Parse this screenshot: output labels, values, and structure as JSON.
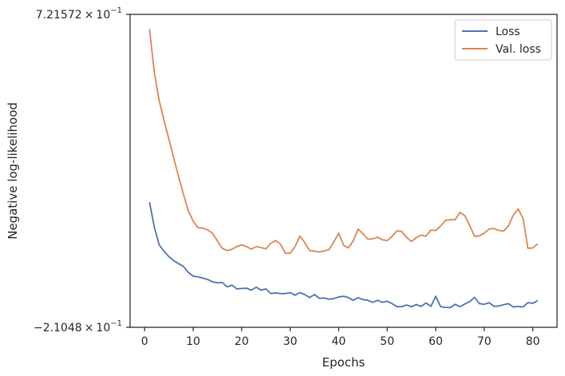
{
  "chart_data": {
    "type": "line",
    "title": "",
    "xlabel": "Epochs",
    "ylabel": "Negative log-likelihood",
    "xlim": [
      -3,
      85
    ],
    "ylim": [
      -0.21048,
      0.721572
    ],
    "x_ticks": [
      0,
      10,
      20,
      30,
      40,
      50,
      60,
      70,
      80
    ],
    "y_tick_labels": {
      "top": {
        "mantissa": "7.21572",
        "base": "10",
        "exponent": "−1"
      },
      "bottom": {
        "mantissa": "−2.1048",
        "base": "10",
        "exponent": "−1"
      }
    },
    "grid": false,
    "legend": "top-right",
    "x": [
      1,
      2,
      3,
      4,
      5,
      6,
      7,
      8,
      9,
      10,
      11,
      12,
      13,
      14,
      15,
      16,
      17,
      18,
      19,
      20,
      21,
      22,
      23,
      24,
      25,
      26,
      27,
      28,
      29,
      30,
      31,
      32,
      33,
      34,
      35,
      36,
      37,
      38,
      39,
      40,
      41,
      42,
      43,
      44,
      45,
      46,
      47,
      48,
      49,
      50,
      51,
      52,
      53,
      54,
      55,
      56,
      57,
      58,
      59,
      60,
      61,
      62,
      63,
      64,
      65,
      66,
      67,
      68,
      69,
      70,
      71,
      72,
      73,
      74,
      75,
      76,
      77,
      78,
      79,
      80,
      81
    ],
    "series": [
      {
        "name": "Loss",
        "color": "#4c72b0",
        "values": [
          0.162,
          0.088,
          0.035,
          0.016,
          0.0,
          -0.012,
          -0.021,
          -0.029,
          -0.047,
          -0.058,
          -0.06,
          -0.064,
          -0.068,
          -0.075,
          -0.078,
          -0.077,
          -0.09,
          -0.085,
          -0.096,
          -0.095,
          -0.094,
          -0.1,
          -0.091,
          -0.1,
          -0.096,
          -0.11,
          -0.108,
          -0.11,
          -0.11,
          -0.107,
          -0.115,
          -0.107,
          -0.113,
          -0.122,
          -0.113,
          -0.124,
          -0.123,
          -0.127,
          -0.125,
          -0.12,
          -0.118,
          -0.122,
          -0.13,
          -0.122,
          -0.128,
          -0.13,
          -0.136,
          -0.13,
          -0.136,
          -0.133,
          -0.14,
          -0.149,
          -0.149,
          -0.144,
          -0.149,
          -0.143,
          -0.148,
          -0.138,
          -0.148,
          -0.118,
          -0.149,
          -0.151,
          -0.152,
          -0.142,
          -0.149,
          -0.141,
          -0.134,
          -0.121,
          -0.14,
          -0.142,
          -0.137,
          -0.148,
          -0.147,
          -0.143,
          -0.14,
          -0.15,
          -0.148,
          -0.15,
          -0.137,
          -0.139,
          -0.131
        ]
      },
      {
        "name": "Val. loss",
        "color": "#dd8452",
        "values": [
          0.678,
          0.548,
          0.465,
          0.405,
          0.35,
          0.294,
          0.238,
          0.186,
          0.136,
          0.106,
          0.086,
          0.085,
          0.08,
          0.069,
          0.047,
          0.025,
          0.018,
          0.022,
          0.03,
          0.035,
          0.03,
          0.022,
          0.03,
          0.027,
          0.023,
          0.04,
          0.048,
          0.037,
          0.01,
          0.01,
          0.03,
          0.061,
          0.042,
          0.018,
          0.016,
          0.014,
          0.017,
          0.021,
          0.044,
          0.07,
          0.034,
          0.026,
          0.047,
          0.082,
          0.068,
          0.052,
          0.053,
          0.058,
          0.05,
          0.048,
          0.06,
          0.077,
          0.075,
          0.057,
          0.045,
          0.057,
          0.064,
          0.061,
          0.079,
          0.078,
          0.091,
          0.108,
          0.11,
          0.11,
          0.132,
          0.122,
          0.093,
          0.06,
          0.062,
          0.07,
          0.082,
          0.084,
          0.078,
          0.076,
          0.092,
          0.124,
          0.142,
          0.114,
          0.025,
          0.026,
          0.038
        ]
      }
    ]
  }
}
